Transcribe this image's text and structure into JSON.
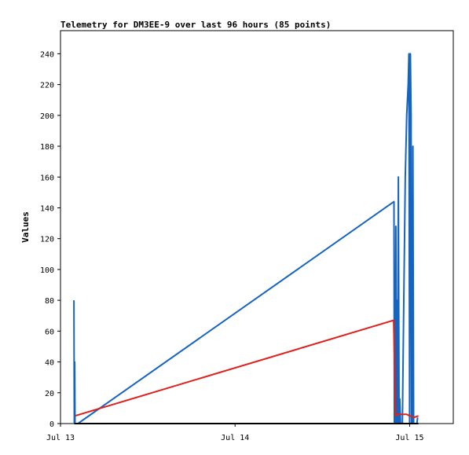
{
  "chart_data": {
    "type": "line",
    "title": "Telemetry for DM3EE-9 over last 96 hours (85 points)",
    "xlabel": "",
    "ylabel": "Values",
    "x_ticks": [
      {
        "label": "Jul 13",
        "value": 0
      },
      {
        "label": "Jul 14",
        "value": 24
      },
      {
        "label": "Jul 15",
        "value": 48
      }
    ],
    "x_unit": "hours since Jul 13 00:00",
    "xlim": [
      0,
      54
    ],
    "ylim": [
      0,
      255
    ],
    "y_ticks": [
      0,
      20,
      40,
      60,
      80,
      100,
      120,
      140,
      160,
      180,
      200,
      220,
      240
    ],
    "grid": false,
    "series": [
      {
        "color": "#1565c0",
        "points": [
          [
            1.85,
            80
          ],
          [
            1.9,
            0
          ],
          [
            1.95,
            40
          ],
          [
            2.0,
            0
          ],
          [
            2.4,
            0
          ],
          [
            45.85,
            144
          ],
          [
            45.9,
            0
          ],
          [
            46.0,
            0
          ],
          [
            46.1,
            128
          ],
          [
            46.2,
            0
          ],
          [
            46.3,
            80
          ],
          [
            46.35,
            0
          ],
          [
            46.45,
            160
          ],
          [
            46.55,
            0
          ],
          [
            46.65,
            16
          ],
          [
            46.75,
            0
          ],
          [
            47.0,
            0
          ],
          [
            47.2,
            80
          ],
          [
            47.4,
            160
          ],
          [
            47.6,
            200
          ],
          [
            47.8,
            220
          ],
          [
            47.9,
            240
          ],
          [
            48.0,
            0
          ],
          [
            48.1,
            240
          ],
          [
            48.2,
            200
          ],
          [
            48.25,
            0
          ],
          [
            48.35,
            0
          ],
          [
            48.45,
            180
          ],
          [
            48.55,
            0
          ],
          [
            49.0,
            0
          ],
          [
            49.1,
            4
          ]
        ]
      },
      {
        "color": "#e0201c",
        "points": [
          [
            2.0,
            5
          ],
          [
            45.8,
            67
          ],
          [
            45.95,
            32
          ],
          [
            46.05,
            5
          ],
          [
            46.3,
            6
          ],
          [
            47.6,
            6
          ],
          [
            48.0,
            5
          ],
          [
            48.6,
            4
          ],
          [
            49.2,
            5
          ]
        ]
      },
      {
        "color": "#000000",
        "points": [
          [
            1.9,
            0
          ],
          [
            49.2,
            0
          ]
        ]
      }
    ]
  }
}
